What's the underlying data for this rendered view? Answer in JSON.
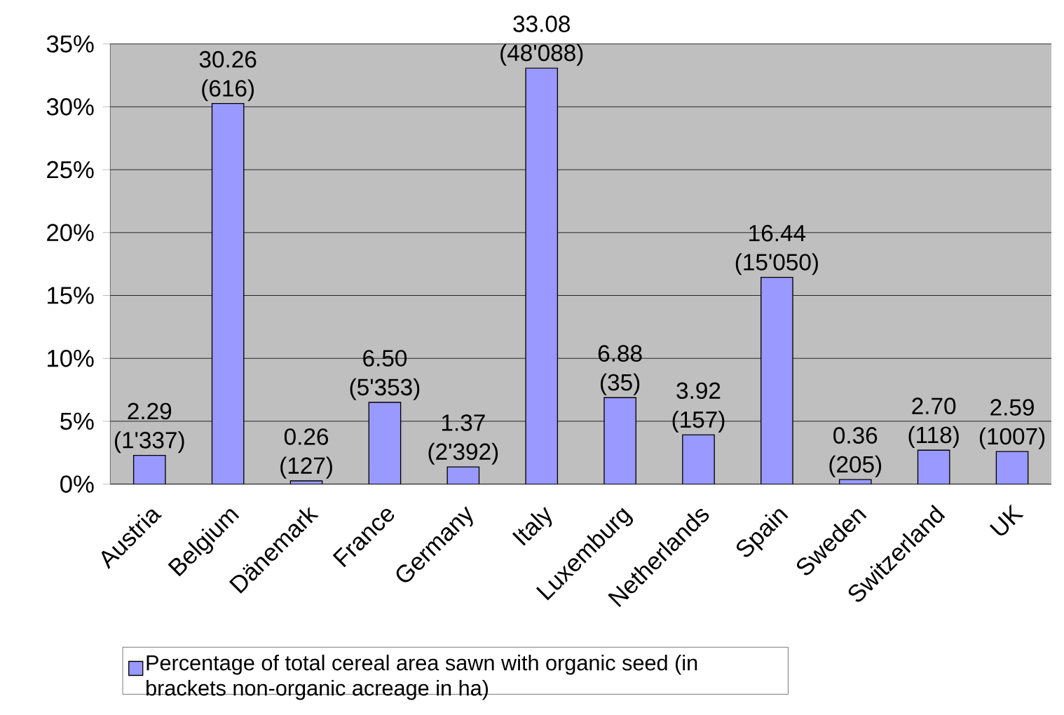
{
  "chart_data": {
    "type": "bar",
    "categories": [
      "Austria",
      "Belgium",
      "Dänemark",
      "France",
      "Germany",
      "Italy",
      "Luxemburg",
      "Netherlands",
      "Spain",
      "Sweden",
      "Switzerland",
      "UK"
    ],
    "series": [
      {
        "name": "Percentage of total cereal area sawn with organic seed (in brackets non-organic acreage in ha)",
        "color": "#9999ff",
        "values": [
          2.29,
          30.26,
          0.26,
          6.5,
          1.37,
          33.08,
          6.88,
          3.92,
          16.44,
          0.36,
          2.7,
          2.59
        ],
        "value_labels": [
          "2.29 (1'337)",
          "30.26 (616)",
          "0.26 (127)",
          "6.50 (5'353)",
          "1.37 (2'392)",
          "33.08 (48'088)",
          "6.88 (35)",
          "3.92 (157)",
          "16.44 (15'050)",
          "0.36 (205)",
          "2.70 (118)",
          "2.59 (1007)"
        ]
      }
    ],
    "ylim": [
      0,
      35
    ],
    "yticks": [
      {
        "value": 0,
        "label": "0%"
      },
      {
        "value": 5,
        "label": "5%"
      },
      {
        "value": 10,
        "label": "10%"
      },
      {
        "value": 15,
        "label": "15%"
      },
      {
        "value": 20,
        "label": "20%"
      },
      {
        "value": 25,
        "label": "25%"
      },
      {
        "value": 30,
        "label": "30%"
      },
      {
        "value": 35,
        "label": "35%"
      }
    ],
    "grid": "y",
    "legend": "bottom"
  }
}
